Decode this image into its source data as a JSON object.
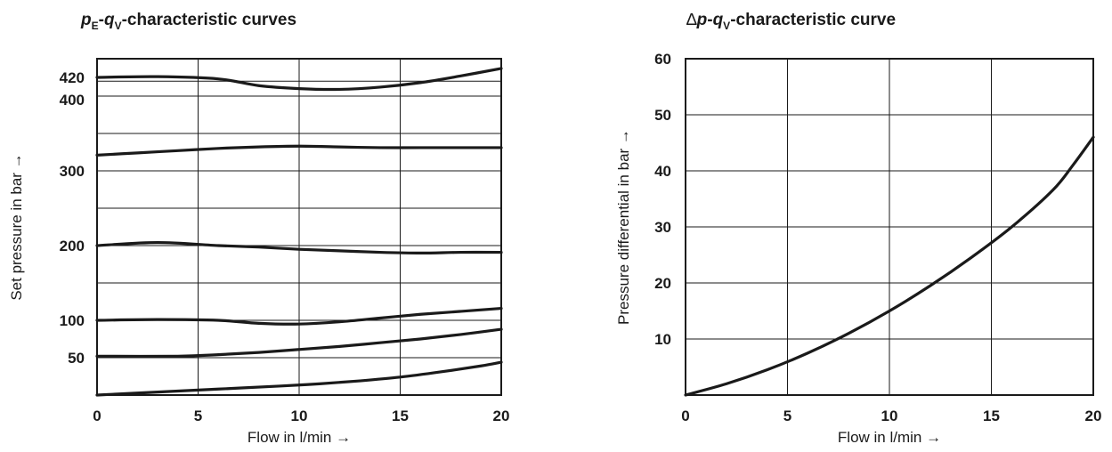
{
  "chart_data": [
    {
      "type": "line",
      "title": {
        "var1": "p",
        "sub1": "E",
        "sep": "-",
        "var2": "q",
        "sub2": "V",
        "suffix": "-characteristic curves"
      },
      "xlabel": "Flow in l/min →",
      "ylabel": "Set pressure in bar →",
      "xlim": [
        0,
        20
      ],
      "ylim": [
        0,
        450
      ],
      "x_ticks": [
        0,
        5,
        10,
        15,
        20
      ],
      "x_tick_labels": [
        "0",
        "5",
        "10",
        "15",
        "20"
      ],
      "y_ticks": [
        50,
        100,
        200,
        300,
        400,
        420
      ],
      "y_tick_labels": [
        "50",
        "100",
        "200",
        "300",
        "400",
        "420"
      ],
      "y_grid": [
        50,
        100,
        150,
        200,
        250,
        300,
        350,
        400,
        420
      ],
      "grid": true,
      "series": [
        {
          "x": [
            0,
            3,
            6,
            8,
            10,
            12,
            14,
            16,
            18,
            20
          ],
          "y": [
            425,
            426,
            423,
            414,
            410,
            409,
            412,
            418,
            427,
            437
          ]
        },
        {
          "x": [
            0,
            2,
            4,
            6,
            8,
            10,
            12,
            14,
            16,
            18,
            20
          ],
          "y": [
            321,
            324,
            327,
            330,
            332,
            333,
            332,
            331,
            331,
            331,
            331
          ]
        },
        {
          "x": [
            0,
            3,
            6,
            8,
            10,
            12,
            14,
            16,
            18,
            20
          ],
          "y": [
            200,
            204,
            200,
            198,
            195,
            193,
            191,
            190,
            191,
            191
          ]
        },
        {
          "x": [
            0,
            3,
            6,
            8,
            10,
            12,
            14,
            16,
            18,
            20
          ],
          "y": [
            100,
            101,
            100,
            96,
            95,
            98,
            103,
            108,
            112,
            116
          ]
        },
        {
          "x": [
            0,
            4,
            6,
            8,
            10,
            12,
            14,
            16,
            18,
            20
          ],
          "y": [
            52,
            52,
            54,
            57,
            61,
            65,
            70,
            75,
            81,
            88
          ]
        },
        {
          "x": [
            0,
            3,
            6,
            9,
            11,
            13,
            15,
            17,
            19,
            20
          ],
          "y": [
            0,
            4,
            8,
            12,
            15,
            19,
            24,
            31,
            39,
            44
          ]
        }
      ]
    },
    {
      "type": "line",
      "title": {
        "prefix": "∆",
        "var1": "p",
        "sep": "-",
        "var2": "q",
        "sub2": "V",
        "suffix": "-characteristic curve"
      },
      "xlabel": "Flow in l/min →",
      "ylabel": "Pressure differential in bar →",
      "xlim": [
        0,
        20
      ],
      "ylim": [
        0,
        60
      ],
      "x_ticks": [
        0,
        5,
        10,
        15,
        20
      ],
      "x_tick_labels": [
        "0",
        "5",
        "10",
        "15",
        "20"
      ],
      "y_ticks": [
        10,
        20,
        30,
        40,
        50,
        60
      ],
      "y_tick_labels": [
        "10",
        "20",
        "30",
        "40",
        "50",
        "60"
      ],
      "y_grid": [
        10,
        20,
        30,
        40,
        50
      ],
      "grid": true,
      "series": [
        {
          "x": [
            0,
            2,
            4,
            6,
            8,
            10,
            12,
            14,
            16,
            18,
            19,
            20
          ],
          "y": [
            0,
            2,
            4.5,
            7.5,
            11,
            15,
            19.5,
            24.5,
            30,
            36.5,
            41,
            46
          ]
        }
      ]
    }
  ]
}
